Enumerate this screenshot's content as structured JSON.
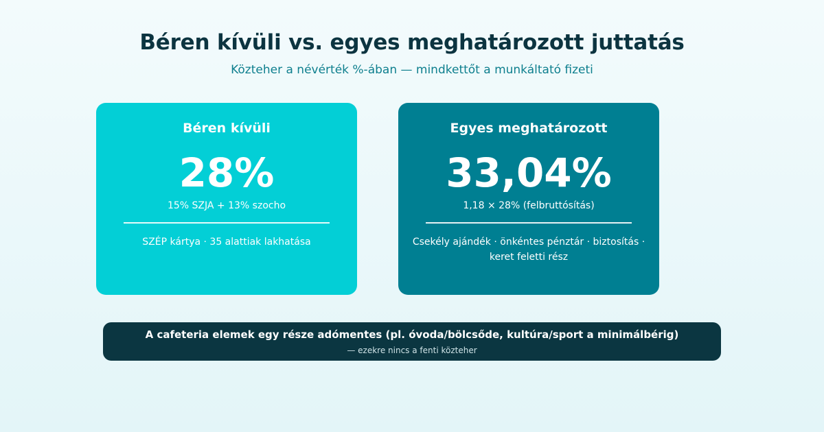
{
  "header": {
    "title": "Béren kívüli vs. egyes meghatározott juttatás",
    "subtitle": "Közteher a névérték %-ában — mindkettőt a munkáltató fizeti"
  },
  "cards": [
    {
      "title": "Béren kívüli",
      "value": "28%",
      "formula": "15% SZJA + 13% szocho",
      "items": "SZÉP kártya · 35 alattiak lakhatása",
      "color": "#03cfd6"
    },
    {
      "title": "Egyes meghatározott",
      "value": "33,04%",
      "formula": "1,18 × 28% (felbruttósítás)",
      "items": "Csekély ajándék · önkéntes pénztár · biztosítás · keret feletti rész",
      "color": "#007f92"
    }
  ],
  "note": {
    "main": "A cafeteria elemek egy része adómentes (pl. óvoda/bölcsőde, kultúra/sport a minimálbérig)",
    "sub": "— ezekre nincs a fenti közteher",
    "color": "#0b3641"
  }
}
